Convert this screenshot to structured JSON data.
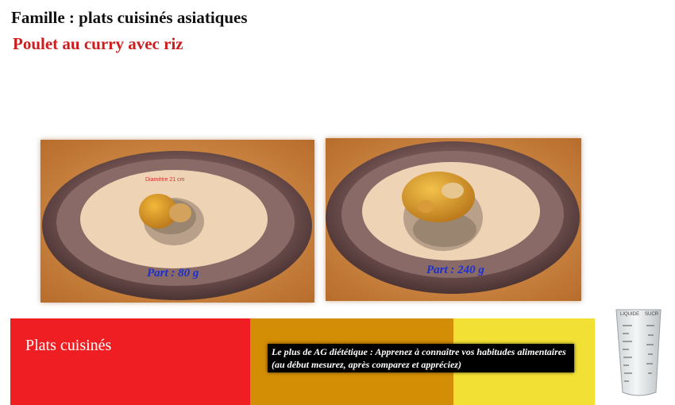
{
  "header": {
    "family": "Famille : plats cuisinés asiatiques",
    "dish": "Poulet au curry avec riz"
  },
  "photos": [
    {
      "portion": "Part : 80 g",
      "plate_text": "Diamètre 21 cm"
    },
    {
      "portion": "Part : 240 g"
    }
  ],
  "band": {
    "category": "Plats cuisinés",
    "tip": "Le plus de AG diététique : Apprenez à connaître vos habitudes alimentaires (au début mesurez, après comparez et appréciez)",
    "colors": {
      "red": "#ee1e22",
      "orange": "#d48e05",
      "yellow": "#f2e035"
    }
  },
  "cup": {
    "label_left": "LIQUIDE",
    "label_right": "SUCR"
  },
  "icons": [
    "measuring-cup-icon"
  ]
}
